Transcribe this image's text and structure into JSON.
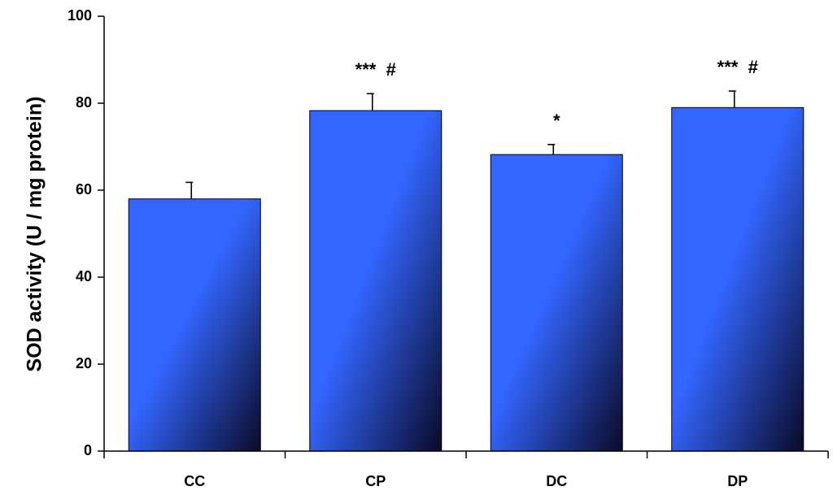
{
  "chart_data": {
    "type": "bar",
    "categories": [
      "CC",
      "CP",
      "DC",
      "DP"
    ],
    "values": [
      58,
      78.3,
      68.2,
      79
    ],
    "errors": [
      3.8,
      3.9,
      2.3,
      3.8
    ],
    "annotations": [
      "",
      "***  #",
      "*",
      "***  #"
    ],
    "title": "",
    "xlabel": "",
    "ylabel": "SOD activity (U / mg protein)",
    "ylim": [
      0,
      100
    ],
    "yticks": [
      "0",
      "20",
      "40",
      "60",
      "80",
      "100"
    ],
    "grid": false,
    "colors": {
      "bar_light": "#3366ff",
      "bar_dark": "#0a0a28",
      "axis": "#000000"
    }
  }
}
